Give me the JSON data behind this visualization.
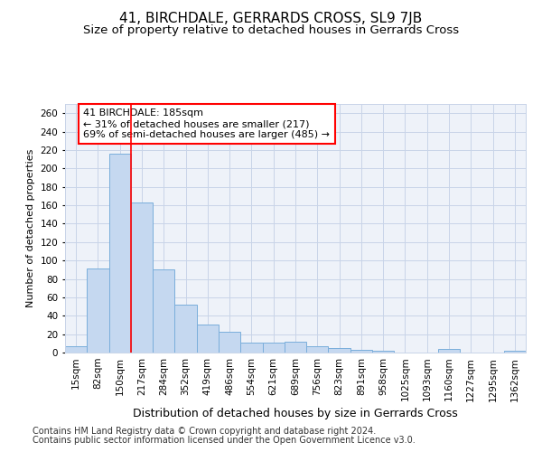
{
  "title": "41, BIRCHDALE, GERRARDS CROSS, SL9 7JB",
  "subtitle": "Size of property relative to detached houses in Gerrards Cross",
  "xlabel": "Distribution of detached houses by size in Gerrards Cross",
  "ylabel": "Number of detached properties",
  "categories": [
    "15sqm",
    "82sqm",
    "150sqm",
    "217sqm",
    "284sqm",
    "352sqm",
    "419sqm",
    "486sqm",
    "554sqm",
    "621sqm",
    "689sqm",
    "756sqm",
    "823sqm",
    "891sqm",
    "958sqm",
    "1025sqm",
    "1093sqm",
    "1160sqm",
    "1227sqm",
    "1295sqm",
    "1362sqm"
  ],
  "values": [
    7,
    91,
    216,
    163,
    90,
    52,
    30,
    23,
    11,
    11,
    12,
    7,
    5,
    3,
    2,
    0,
    0,
    4,
    0,
    0,
    2
  ],
  "bar_color": "#c5d8f0",
  "bar_edge_color": "#7aaedb",
  "red_line_x": 2.5,
  "annotation_text": "41 BIRCHDALE: 185sqm\n← 31% of detached houses are smaller (217)\n69% of semi-detached houses are larger (485) →",
  "annotation_box_color": "white",
  "annotation_box_edge_color": "red",
  "red_line_color": "red",
  "ylim": [
    0,
    270
  ],
  "yticks": [
    0,
    20,
    40,
    60,
    80,
    100,
    120,
    140,
    160,
    180,
    200,
    220,
    240,
    260
  ],
  "footer1": "Contains HM Land Registry data © Crown copyright and database right 2024.",
  "footer2": "Contains public sector information licensed under the Open Government Licence v3.0.",
  "background_color": "#eef2f9",
  "grid_color": "#c8d4e8",
  "title_fontsize": 11,
  "subtitle_fontsize": 9.5,
  "xlabel_fontsize": 9,
  "ylabel_fontsize": 8,
  "tick_fontsize": 7.5,
  "annot_fontsize": 8,
  "footer_fontsize": 7
}
